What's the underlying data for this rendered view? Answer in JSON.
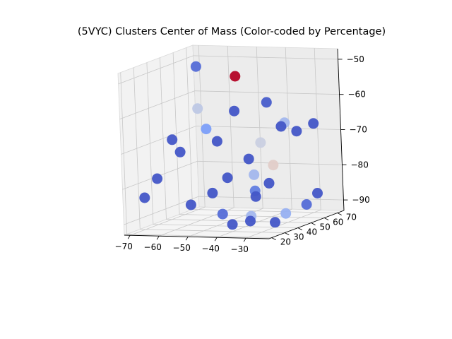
{
  "chart_data": {
    "type": "scatter",
    "projection": "3d",
    "title": "(5VYC) Clusters Center of Mass (Color-coded by Percentage)",
    "xlabel": "",
    "ylabel": "",
    "zlabel": "",
    "xlim": [
      -72,
      -22
    ],
    "ylim": [
      18,
      75
    ],
    "zlim": [
      -93,
      -47
    ],
    "x_ticks": [
      -70,
      -60,
      -50,
      -40,
      -30
    ],
    "y_ticks": [
      20,
      30,
      40,
      50,
      60,
      70
    ],
    "z_ticks": [
      -90,
      -80,
      -70,
      -60,
      -50
    ],
    "x_tick_labels": [
      "−70",
      "−60",
      "−50",
      "−40",
      "−30"
    ],
    "y_tick_labels": [
      "20",
      "30",
      "40",
      "50",
      "60",
      "70"
    ],
    "z_tick_labels": [
      "−90",
      "−80",
      "−70",
      "−60",
      "−50"
    ],
    "grid": true,
    "colormap": "coolwarm",
    "points": [
      {
        "x": -68,
        "y": 68,
        "z": -52,
        "c": 0.1
      },
      {
        "x": -50,
        "y": 58,
        "z": -53,
        "c": 1.0
      },
      {
        "x": -45,
        "y": 70,
        "z": -62,
        "c": 0.05
      },
      {
        "x": -62,
        "y": 55,
        "z": -62,
        "c": 0.42
      },
      {
        "x": -48,
        "y": 52,
        "z": -62,
        "c": 0.03
      },
      {
        "x": -40,
        "y": 72,
        "z": -68,
        "c": 0.35
      },
      {
        "x": -68,
        "y": 48,
        "z": -70,
        "c": 0.03
      },
      {
        "x": -57,
        "y": 50,
        "z": -67,
        "c": 0.25
      },
      {
        "x": -64,
        "y": 45,
        "z": -73,
        "c": 0.03
      },
      {
        "x": -52,
        "y": 47,
        "z": -70,
        "c": 0.03
      },
      {
        "x": -43,
        "y": 60,
        "z": -72,
        "c": 0.45
      },
      {
        "x": -38,
        "y": 65,
        "z": -68,
        "c": 0.03
      },
      {
        "x": -35,
        "y": 70,
        "z": -70,
        "c": 0.03
      },
      {
        "x": -30,
        "y": 72,
        "z": -68,
        "c": 0.03
      },
      {
        "x": -38,
        "y": 58,
        "z": -78,
        "c": 0.55
      },
      {
        "x": -45,
        "y": 55,
        "z": -76,
        "c": 0.03
      },
      {
        "x": -42,
        "y": 52,
        "z": -80,
        "c": 0.35
      },
      {
        "x": -70,
        "y": 40,
        "z": -80,
        "c": 0.03
      },
      {
        "x": -52,
        "y": 42,
        "z": -84,
        "c": 0.03
      },
      {
        "x": -48,
        "y": 45,
        "z": -80,
        "c": 0.03
      },
      {
        "x": -40,
        "y": 48,
        "z": -84,
        "c": 0.15
      },
      {
        "x": -36,
        "y": 50,
        "z": -82,
        "c": 0.03
      },
      {
        "x": -38,
        "y": 44,
        "z": -85,
        "c": 0.03
      },
      {
        "x": -70,
        "y": 30,
        "z": -84,
        "c": 0.03
      },
      {
        "x": -24,
        "y": 60,
        "z": -86,
        "c": 0.03
      },
      {
        "x": -27,
        "y": 58,
        "z": -89,
        "c": 0.1
      },
      {
        "x": -55,
        "y": 32,
        "z": -86,
        "c": 0.03
      },
      {
        "x": -46,
        "y": 36,
        "z": -89,
        "c": 0.1
      },
      {
        "x": -38,
        "y": 40,
        "z": -90,
        "c": 0.35
      },
      {
        "x": -40,
        "y": 30,
        "z": -91,
        "c": 0.03
      },
      {
        "x": -28,
        "y": 36,
        "z": -91,
        "c": 0.03
      },
      {
        "x": -26,
        "y": 40,
        "z": -89,
        "c": 0.32
      },
      {
        "x": -31,
        "y": 24,
        "z": -89,
        "c": 0.03
      }
    ]
  }
}
